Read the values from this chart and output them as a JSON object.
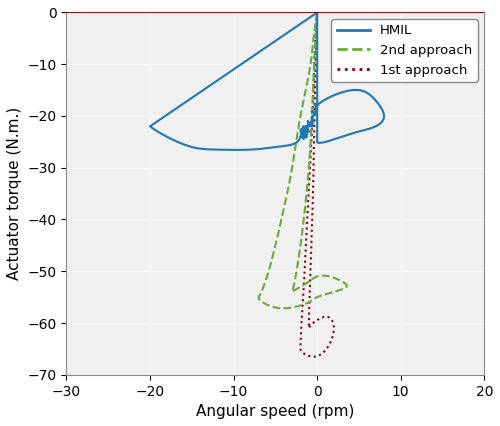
{
  "title": "",
  "xlabel": "Angular speed (rpm)",
  "ylabel": "Actuator torque (N.m.)",
  "xlim": [
    -30,
    20
  ],
  "ylim": [
    -70,
    0
  ],
  "xticks": [
    -30,
    -20,
    -10,
    0,
    10,
    20
  ],
  "yticks": [
    0,
    -10,
    -20,
    -30,
    -40,
    -50,
    -60,
    -70
  ],
  "hmil_color": "#1f77b4",
  "approach2_color": "#6aaa3a",
  "approach1_color": "#8b0000",
  "topline_color": "#8b0000",
  "legend_labels": [
    "HMIL",
    "2nd approach",
    "1st approach"
  ],
  "figsize": [
    5.0,
    4.26
  ],
  "dpi": 100
}
